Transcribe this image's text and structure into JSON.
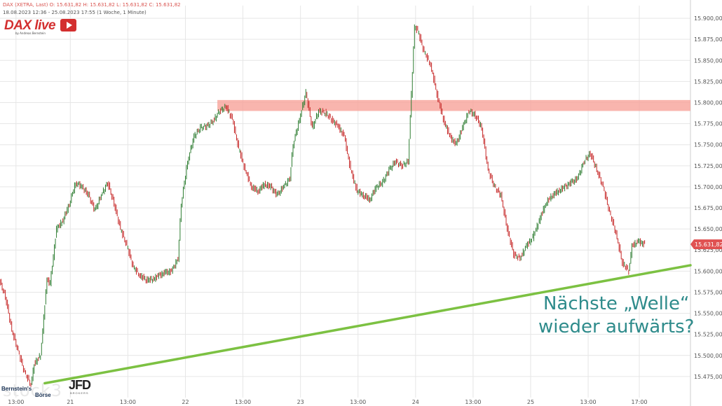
{
  "header": {
    "title_line": "DAX (XETRA, Last)  O: 15.631,82  H: 15.631,82  L: 15.631,82  C: 15.631,82",
    "range_line": "18.08.2023 12:36 - 25.08.2023 17:55  (1 Woche, 1 Minute)"
  },
  "logo": {
    "name": "DAX live",
    "byline": "by Andreas Bernstein"
  },
  "annotation": {
    "line1": "Nächste „Welle“",
    "line2": "wieder aufwärts?"
  },
  "branding": {
    "watermark": "stock3",
    "bernstein1": "Bernstein's",
    "bernstein2": "Börse",
    "jfd": "JFD",
    "jfd_sub": "BROKERS"
  },
  "colors": {
    "candle_up": "#2e7d32",
    "candle_down": "#c62828",
    "support": "#7cc142",
    "resistance": "#f8a39a",
    "price_tag": "#e05252",
    "grid": "#e6e6e6"
  },
  "chart_data": {
    "type": "line",
    "title": "",
    "xlabel": "",
    "ylabel": "",
    "ylim": [
      15450,
      15915
    ],
    "y_ticks": [
      "15.475,00",
      "15.500,00",
      "15.525,00",
      "15.550,00",
      "15.575,00",
      "15.600,00",
      "15.625,00",
      "15.650,00",
      "15.675,00",
      "15.700,00",
      "15.725,00",
      "15.750,00",
      "15.775,00",
      "15.800,00",
      "15.825,00",
      "15.850,00",
      "15.875,00",
      "15.900,00"
    ],
    "y_tick_values": [
      15475,
      15500,
      15525,
      15550,
      15575,
      15600,
      15625,
      15650,
      15675,
      15700,
      15725,
      15750,
      15775,
      15800,
      15825,
      15850,
      15875,
      15900
    ],
    "x_ticks": [
      "13:00",
      "21",
      "13:00",
      "22",
      "13:00",
      "23",
      "13:00",
      "24",
      "13:00",
      "25",
      "13:00",
      "17:00"
    ],
    "x_tick_index": [
      5,
      22,
      40,
      58,
      76,
      94,
      112,
      130,
      148,
      166,
      184,
      200
    ],
    "x_range": [
      0,
      216
    ],
    "last_price_label": "15.631,82",
    "last_price": 15631.82,
    "series": [
      {
        "x": [
          0,
          2,
          4,
          6,
          8,
          10,
          11,
          13,
          15,
          16,
          18,
          20,
          22,
          24,
          26,
          28,
          30,
          32,
          34,
          36,
          38,
          40,
          42,
          44,
          46,
          48,
          50,
          52,
          54,
          56,
          57,
          59,
          61,
          63,
          65,
          67,
          69,
          71,
          73,
          75,
          77,
          79,
          81,
          83,
          85,
          87,
          89,
          91,
          92,
          94,
          96,
          98,
          100,
          102,
          104,
          106,
          108,
          110,
          112,
          114,
          116,
          118,
          120,
          122,
          124,
          126,
          128,
          130,
          131,
          133,
          135,
          137,
          139,
          141,
          143,
          145,
          147,
          149,
          151,
          153,
          155,
          157,
          159,
          161,
          163,
          165,
          167,
          169,
          171,
          173,
          175,
          177,
          179,
          181,
          183,
          185,
          187,
          189,
          191,
          193,
          195,
          197,
          198,
          200,
          202
        ],
        "values": [
          15590,
          15570,
          15530,
          15505,
          15480,
          15465,
          15490,
          15500,
          15590,
          15585,
          15650,
          15660,
          15680,
          15705,
          15700,
          15690,
          15672,
          15690,
          15705,
          15680,
          15650,
          15630,
          15605,
          15595,
          15590,
          15590,
          15595,
          15598,
          15600,
          15615,
          15680,
          15730,
          15760,
          15770,
          15772,
          15778,
          15790,
          15795,
          15780,
          15745,
          15720,
          15700,
          15695,
          15703,
          15700,
          15690,
          15700,
          15710,
          15750,
          15780,
          15812,
          15770,
          15790,
          15788,
          15780,
          15772,
          15760,
          15720,
          15695,
          15690,
          15685,
          15700,
          15705,
          15720,
          15730,
          15725,
          15730,
          15890,
          15885,
          15860,
          15845,
          15810,
          15780,
          15760,
          15750,
          15770,
          15790,
          15785,
          15770,
          15720,
          15700,
          15690,
          15650,
          15620,
          15615,
          15630,
          15640,
          15660,
          15680,
          15690,
          15695,
          15700,
          15705,
          15710,
          15730,
          15740,
          15720,
          15700,
          15670,
          15645,
          15610,
          15600,
          15630,
          15635,
          15632
        ]
      }
    ],
    "support_line": {
      "from": {
        "x": 14,
        "y": 15467
      },
      "to": {
        "x": 216,
        "y": 15607
      }
    },
    "resistance_zone": {
      "x_from": 68,
      "x_to": 216,
      "y_from": 15790,
      "y_to": 15803
    }
  }
}
